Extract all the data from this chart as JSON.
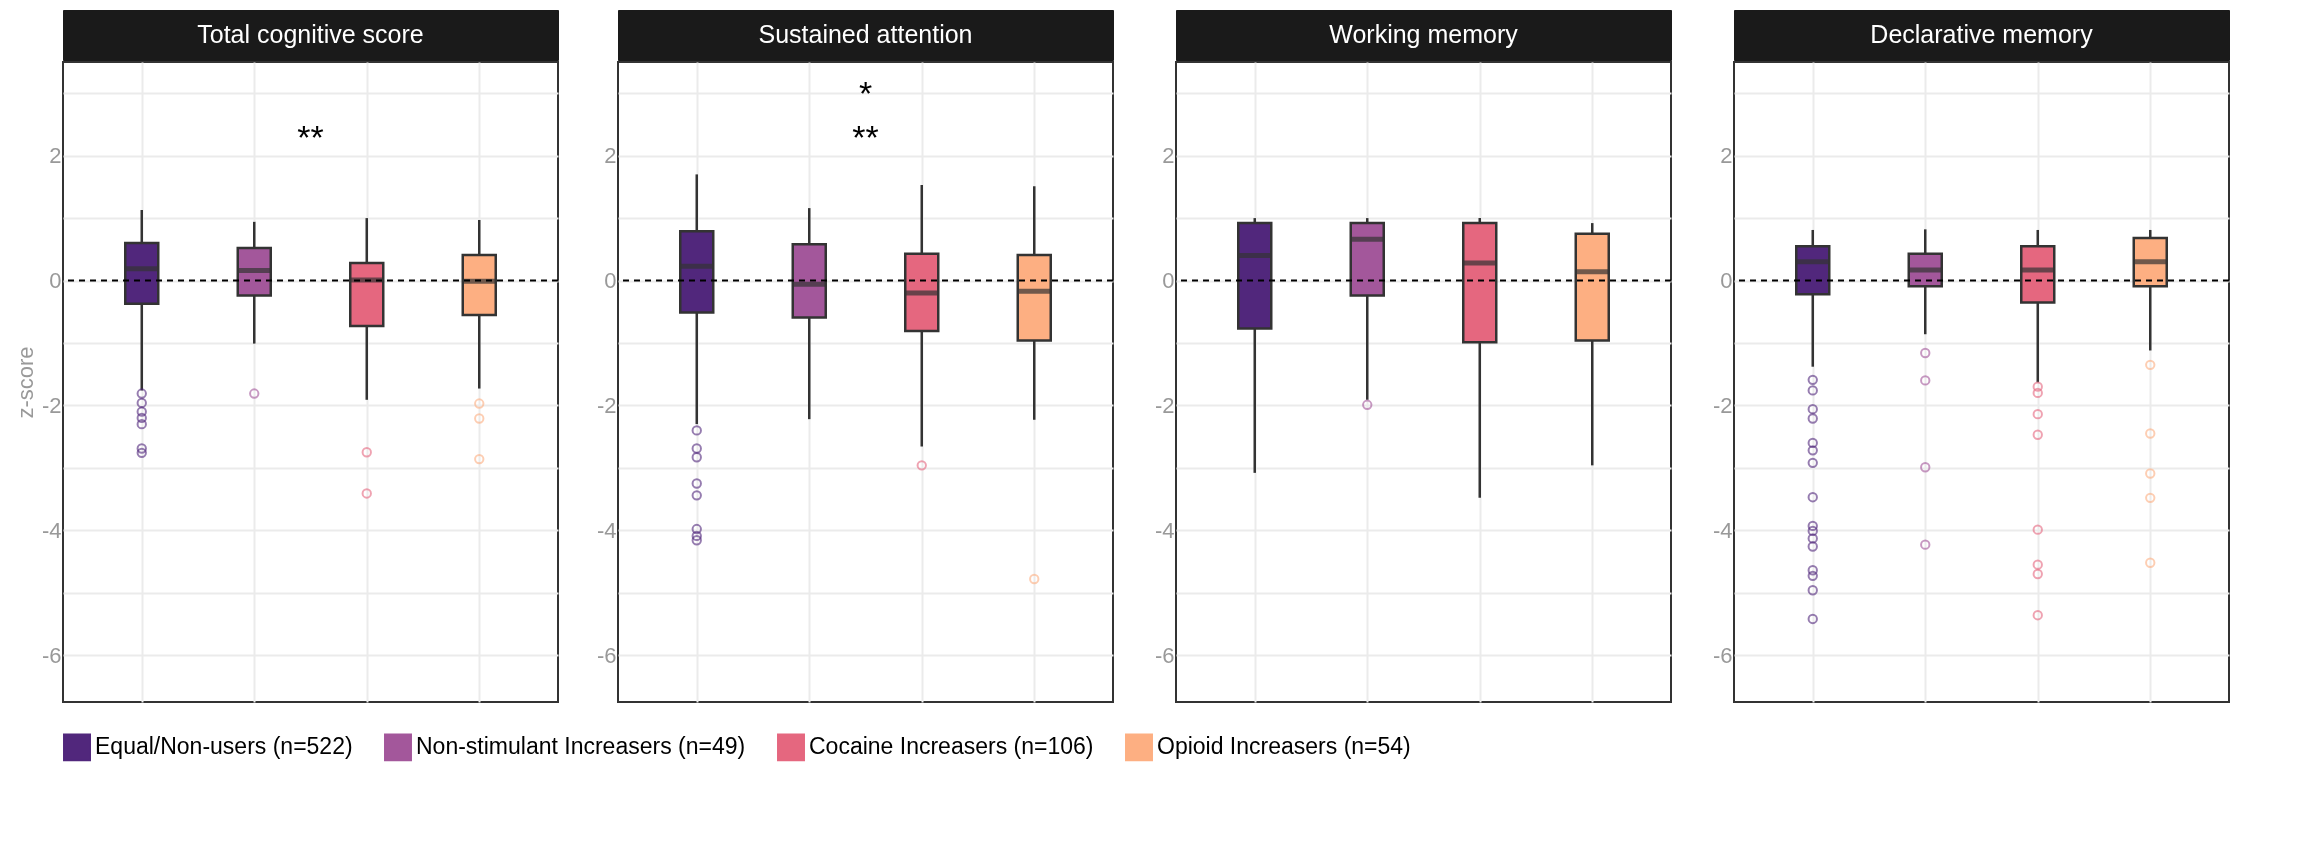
{
  "chart_data": [
    {
      "type": "box",
      "title": "Total cognitive score",
      "ylabel": "z-score",
      "categories": [
        null,
        null,
        null,
        null
      ],
      "ylim": [
        -6.75,
        3.5
      ],
      "yticks": [
        -6,
        {
          "value": -5,
          "label": null
        },
        -4,
        {
          "value": -3,
          "label": null
        },
        -2,
        {
          "value": -1,
          "label": null
        },
        0,
        {
          "value": 1,
          "label": null
        },
        2,
        {
          "value": 3,
          "label": null
        }
      ],
      "grid": true,
      "legend": "bottom",
      "tick_labels": "y",
      "ref_lines": [
        {
          "axis": "y",
          "value": 0,
          "line_style": "dashed"
        }
      ],
      "annotations": [
        "**"
      ],
      "series": [
        {
          "name": "Equal/Non-users (n=522)",
          "color": "#51277c",
          "boxes": [
            {
              "low": -1.76,
              "q1": -0.37,
              "median": 0.19,
              "q3": 0.6,
              "high": 1.13,
              "outliers": [
                -1.81,
                -1.96,
                -2.1,
                -2.2,
                -2.3,
                -2.69,
                -2.76
              ]
            },
            null,
            null,
            null
          ]
        },
        {
          "name": "Non-stimulant Increasers (n=49)",
          "color": "#a3579b",
          "boxes": [
            null,
            {
              "low": -1.01,
              "q1": -0.24,
              "median": 0.16,
              "q3": 0.52,
              "high": 0.94,
              "outliers": [
                -1.81
              ]
            },
            null,
            null
          ]
        },
        {
          "name": "Cocaine Increasers (n=106)",
          "color": "#e5677f",
          "boxes": [
            null,
            null,
            {
              "low": -1.91,
              "q1": -0.73,
              "median": 0.01,
              "q3": 0.28,
              "high": 1.0,
              "outliers": [
                -2.75,
                -3.41
              ]
            },
            null
          ]
        },
        {
          "name": "Opioid Increasers (n=54)",
          "color": "#fdaf82",
          "boxes": [
            null,
            null,
            null,
            {
              "low": -1.73,
              "q1": -0.55,
              "median": -0.01,
              "q3": 0.41,
              "high": 0.97,
              "outliers": [
                -1.97,
                -2.21,
                -2.86
              ]
            }
          ]
        }
      ]
    },
    {
      "type": "box",
      "title": "Sustained attention",
      "categories": [
        null,
        null,
        null,
        null
      ],
      "ylim": [
        -6.75,
        3.5
      ],
      "yticks": [
        -6,
        {
          "value": -5,
          "label": null
        },
        -4,
        {
          "value": -3,
          "label": null
        },
        -2,
        {
          "value": -1,
          "label": null
        },
        0,
        {
          "value": 1,
          "label": null
        },
        2,
        {
          "value": 3,
          "label": null
        }
      ],
      "grid": true,
      "tick_labels": "y",
      "ref_lines": [
        {
          "axis": "y",
          "value": 0,
          "line_style": "dashed"
        }
      ],
      "annotations": [
        "*",
        "**"
      ],
      "series": [
        {
          "color": "#51277c",
          "boxes": [
            {
              "low": -2.3,
              "q1": -0.51,
              "median": 0.23,
              "q3": 0.79,
              "high": 1.7,
              "outliers": [
                -2.4,
                -2.69,
                -2.83,
                -3.25,
                -3.44,
                -3.98,
                -4.09,
                -4.16
              ]
            },
            null,
            null,
            null
          ]
        },
        {
          "color": "#a3579b",
          "boxes": [
            null,
            {
              "low": -2.22,
              "q1": -0.59,
              "median": -0.06,
              "q3": 0.58,
              "high": 1.16
            },
            null,
            null
          ]
        },
        {
          "color": "#e5677f",
          "boxes": [
            null,
            null,
            {
              "low": -2.66,
              "q1": -0.81,
              "median": -0.2,
              "q3": 0.43,
              "high": 1.53,
              "outliers": [
                -2.96
              ]
            },
            null
          ]
        },
        {
          "color": "#fdaf82",
          "boxes": [
            null,
            null,
            null,
            {
              "low": -2.23,
              "q1": -0.96,
              "median": -0.17,
              "q3": 0.41,
              "high": 1.51,
              "outliers": [
                -4.78
              ]
            }
          ]
        }
      ]
    },
    {
      "type": "box",
      "title": "Working memory",
      "categories": [
        null,
        null,
        null,
        null
      ],
      "ylim": [
        -6.75,
        3.5
      ],
      "yticks": [
        -6,
        {
          "value": -5,
          "label": null
        },
        -4,
        {
          "value": -3,
          "label": null
        },
        -2,
        {
          "value": -1,
          "label": null
        },
        0,
        {
          "value": 1,
          "label": null
        },
        2,
        {
          "value": 3,
          "label": null
        }
      ],
      "grid": true,
      "tick_labels": "y",
      "ref_lines": [
        {
          "axis": "y",
          "value": 0,
          "line_style": "dashed"
        }
      ],
      "series": [
        {
          "color": "#51277c",
          "boxes": [
            {
              "low": -3.08,
              "q1": -0.77,
              "median": 0.4,
              "q3": 0.92,
              "high": 1.0
            },
            null,
            null,
            null
          ]
        },
        {
          "color": "#a3579b",
          "boxes": [
            null,
            {
              "low": -1.91,
              "q1": -0.24,
              "median": 0.66,
              "q3": 0.92,
              "high": 1.0,
              "outliers": [
                -1.99
              ]
            },
            null,
            null
          ]
        },
        {
          "color": "#e5677f",
          "boxes": [
            null,
            null,
            {
              "low": -3.48,
              "q1": -0.99,
              "median": 0.28,
              "q3": 0.92,
              "high": 1.0
            },
            null
          ]
        },
        {
          "color": "#fdaf82",
          "boxes": [
            null,
            null,
            null,
            {
              "low": -2.96,
              "q1": -0.96,
              "median": 0.14,
              "q3": 0.75,
              "high": 0.92
            }
          ]
        }
      ]
    },
    {
      "type": "box",
      "title": "Declarative memory",
      "categories": [
        null,
        null,
        null,
        null
      ],
      "ylim": [
        -6.75,
        3.5
      ],
      "yticks": [
        -6,
        {
          "value": -5,
          "label": null
        },
        -4,
        {
          "value": -3,
          "label": null
        },
        -2,
        {
          "value": -1,
          "label": null
        },
        0,
        {
          "value": 1,
          "label": null
        },
        2,
        {
          "value": 3,
          "label": null
        }
      ],
      "grid": true,
      "tick_labels": "y",
      "ref_lines": [
        {
          "axis": "y",
          "value": 0,
          "line_style": "dashed"
        }
      ],
      "series": [
        {
          "color": "#51277c",
          "boxes": [
            {
              "low": -1.38,
              "q1": -0.22,
              "median": 0.3,
              "q3": 0.55,
              "high": 0.81,
              "outliers": [
                -1.59,
                -1.76,
                -2.06,
                -2.21,
                -2.6,
                -2.72,
                -2.92,
                -3.47,
                -3.93,
                -4.01,
                -4.13,
                -4.26,
                -4.64,
                -4.73,
                -4.96,
                -5.42
              ]
            },
            null,
            null,
            null
          ]
        },
        {
          "color": "#a3579b",
          "boxes": [
            null,
            {
              "low": -0.86,
              "q1": -0.09,
              "median": 0.17,
              "q3": 0.43,
              "high": 0.82,
              "outliers": [
                -1.16,
                -1.6,
                -2.99,
                -4.23
              ]
            },
            null,
            null
          ]
        },
        {
          "color": "#e5677f",
          "boxes": [
            null,
            null,
            {
              "low": -1.63,
              "q1": -0.35,
              "median": 0.17,
              "q3": 0.55,
              "high": 0.81,
              "outliers": [
                -1.7,
                -1.8,
                -2.14,
                -2.47,
                -3.99,
                -4.55,
                -4.7,
                -5.36
              ]
            },
            null
          ]
        },
        {
          "color": "#fdaf82",
          "boxes": [
            null,
            null,
            null,
            {
              "low": -1.12,
              "q1": -0.09,
              "median": 0.3,
              "q3": 0.68,
              "high": 0.81,
              "outliers": [
                -1.35,
                -2.45,
                -3.09,
                -3.48,
                -4.52
              ]
            }
          ]
        }
      ]
    }
  ]
}
